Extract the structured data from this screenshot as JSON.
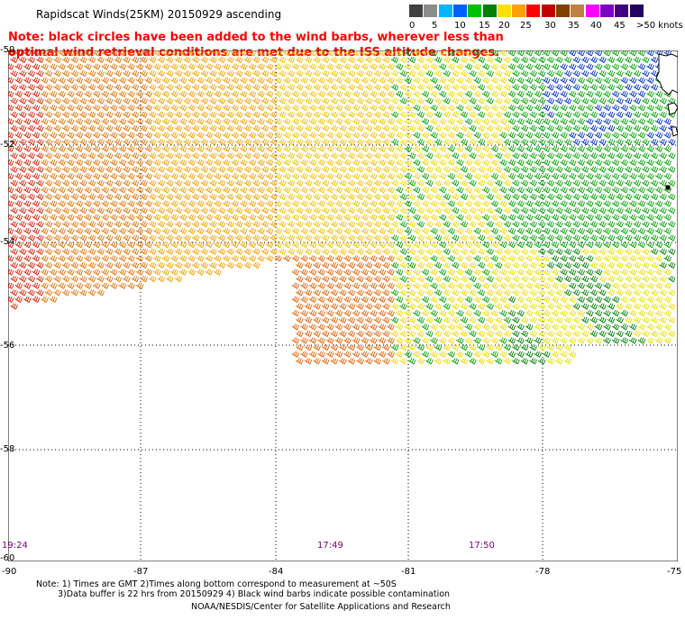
{
  "title": "Rapidscat Winds(25KM) 20150929 ascending",
  "note_line1": "Note: black circles have been added to the wind barbs, wherever less than",
  "note_line2": "optimal wind retrieval conditions are met due to the ISS altitude changes.",
  "legend": {
    "labels": [
      "0",
      "5",
      "10",
      "15",
      "20",
      "25",
      "30",
      "35",
      "40",
      "45",
      ">50 knots"
    ],
    "colors": [
      "#404040",
      "#8c8c8c",
      "#00b4ff",
      "#0060ff",
      "#00c000",
      "#008000",
      "#ffe000",
      "#ffa000",
      "#ff0000",
      "#c00000",
      "#804000",
      "#c08040",
      "#ff00ff",
      "#8000c0",
      "#400080",
      "#200060"
    ]
  },
  "latitudes": [
    "-50",
    "-52",
    "-54",
    "-56",
    "-58",
    "-60"
  ],
  "longitudes": [
    "-90",
    "-87",
    "-84",
    "-81",
    "-78",
    "-75"
  ],
  "times": [
    "19:24",
    "17:49",
    "17:50"
  ],
  "footer": {
    "line1": "Note: 1) Times are GMT 2)Times along bottom correspond to measurement at ~50S",
    "line2": "3)Data buffer is 22 hrs from 20150929 4) Black wind barbs indicate possible contamination",
    "line3": "NOAA/NESDIS/Center for Satellite Applications and Research"
  }
}
